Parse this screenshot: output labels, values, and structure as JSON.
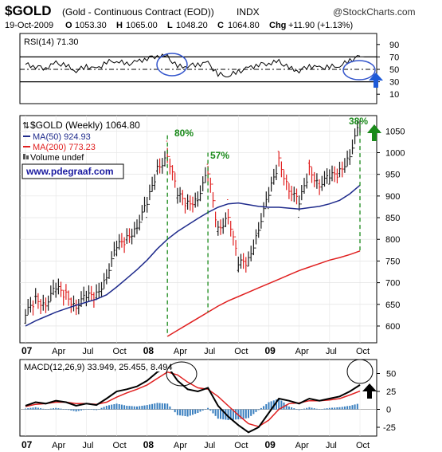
{
  "header": {
    "symbol": "$GOLD",
    "description": "(Gold - Continuous Contract (EOD))",
    "exchange": "INDX",
    "source": "@StockCharts.com",
    "date": "19-Oct-2009",
    "o_label": "O",
    "o_value": "1053.30",
    "h_label": "H",
    "h_value": "1065.00",
    "l_label": "L",
    "l_value": "1048.20",
    "c_label": "C",
    "c_value": "1064.80",
    "chg_label": "Chg",
    "chg_value": "+11.90 (+1.13%)"
  },
  "rsi_panel": {
    "label": "RSI(14) 71.30",
    "tick_labels": [
      "90",
      "70",
      "50",
      "30",
      "10"
    ]
  },
  "main_panel": {
    "legend_gold": "$GOLD (Weekly) 1064.80",
    "legend_ma50": "MA(50) 924.93",
    "legend_ma200": "MA(200) 773.23",
    "legend_volume": "Volume undef",
    "watermark": "www.pdegraaf.com",
    "y_tick_labels": [
      "1050",
      "1000",
      "950",
      "900",
      "850",
      "800",
      "750",
      "700",
      "650",
      "600"
    ],
    "x_tick_labels": [
      "07",
      "Apr",
      "Jul",
      "Oct",
      "08",
      "Apr",
      "Jul",
      "Oct",
      "09",
      "Apr",
      "Jul",
      "Oct"
    ],
    "annotations": [
      "80%",
      "57%",
      "38%"
    ]
  },
  "macd_panel": {
    "label": "MACD(12,26,9) 33.949, 25.455, 8.494",
    "tick_labels": [
      "50",
      "25",
      "0",
      "-25"
    ],
    "x_tick_labels": [
      "07",
      "Apr",
      "Jul",
      "Oct",
      "08",
      "Apr",
      "Jul",
      "Oct",
      "09",
      "Apr",
      "Jul",
      "Oct"
    ]
  },
  "colors": {
    "ma50": "#1f2b8c",
    "ma200": "#e02020",
    "up_bar": "#1a1a1a",
    "down_bar": "#e02020",
    "annotation_green": "#1a8a1a",
    "arrow_blue": "#1e5ad8",
    "ellipse_blue": "#3355cc",
    "histogram": "#3a7fbf",
    "watermark_text": "#1a1aa0"
  },
  "chart_data": [
    {
      "type": "line",
      "title": "RSI(14) 71.30",
      "x": [
        "Jan 07",
        "Feb 07",
        "Mar 07",
        "Apr 07",
        "May 07",
        "Jun 07",
        "Jul 07",
        "Aug 07",
        "Sep 07",
        "Oct 07",
        "Nov 07",
        "Dec 07",
        "Jan 08",
        "Feb 08",
        "Mar 08",
        "Apr 08",
        "May 08",
        "Jun 08",
        "Jul 08",
        "Aug 08",
        "Sep 08",
        "Oct 08",
        "Nov 08",
        "Dec 08",
        "Jan 09",
        "Feb 09",
        "Mar 09",
        "Apr 09",
        "May 09",
        "Jun 09",
        "Jul 09",
        "Aug 09",
        "Sep 09",
        "Oct 09"
      ],
      "values": [
        58,
        55,
        52,
        60,
        56,
        48,
        55,
        50,
        62,
        64,
        58,
        62,
        68,
        72,
        70,
        54,
        56,
        58,
        60,
        42,
        40,
        46,
        52,
        58,
        60,
        62,
        52,
        48,
        56,
        52,
        54,
        56,
        64,
        71.3
      ],
      "ylim": [
        0,
        100
      ],
      "y_ticks": [
        10,
        30,
        50,
        70,
        90
      ],
      "reference_lines": [
        30,
        50,
        70
      ]
    },
    {
      "type": "line",
      "title": "$GOLD (Weekly) 1064.80",
      "x": [
        "Jan 07",
        "Feb 07",
        "Mar 07",
        "Apr 07",
        "May 07",
        "Jun 07",
        "Jul 07",
        "Aug 07",
        "Sep 07",
        "Oct 07",
        "Nov 07",
        "Dec 07",
        "Jan 08",
        "Feb 08",
        "Mar 08",
        "Apr 08",
        "May 08",
        "Jun 08",
        "Jul 08",
        "Aug 08",
        "Sep 08",
        "Oct 08",
        "Nov 08",
        "Dec 08",
        "Jan 09",
        "Feb 09",
        "Mar 09",
        "Apr 09",
        "May 09",
        "Jun 09",
        "Jul 09",
        "Aug 09",
        "Sep 09",
        "Oct 09"
      ],
      "ylim": [
        565,
        1080
      ],
      "y_ticks": [
        600,
        650,
        700,
        750,
        800,
        850,
        900,
        950,
        1000,
        1050
      ],
      "series": [
        {
          "name": "$GOLD (Weekly)",
          "values": [
            625,
            660,
            655,
            685,
            670,
            650,
            665,
            670,
            720,
            780,
            800,
            835,
            880,
            960,
            1000,
            900,
            880,
            900,
            950,
            820,
            860,
            740,
            750,
            830,
            900,
            980,
            920,
            880,
            960,
            930,
            940,
            955,
            1000,
            1064.8
          ]
        },
        {
          "name": "MA(50)",
          "values": [
            600,
            612,
            622,
            632,
            640,
            648,
            655,
            662,
            672,
            690,
            710,
            730,
            752,
            778,
            800,
            818,
            833,
            848,
            862,
            874,
            882,
            884,
            880,
            876,
            874,
            874,
            872,
            870,
            873,
            876,
            882,
            890,
            905,
            924.93
          ]
        },
        {
          "name": "MA(200)",
          "values": [
            null,
            null,
            null,
            null,
            null,
            null,
            null,
            null,
            null,
            null,
            null,
            null,
            null,
            null,
            576,
            590,
            604,
            618,
            632,
            646,
            658,
            668,
            678,
            688,
            698,
            708,
            718,
            728,
            736,
            744,
            752,
            758,
            765,
            773.23
          ]
        }
      ],
      "annotations": [
        {
          "text": "80%",
          "x": "Mar 08"
        },
        {
          "text": "57%",
          "x": "Jul 08"
        },
        {
          "text": "38%",
          "x": "Oct 09"
        }
      ]
    },
    {
      "type": "line",
      "title": "MACD(12,26,9) 33.949, 25.455, 8.494",
      "x": [
        "Jan 07",
        "Feb 07",
        "Mar 07",
        "Apr 07",
        "May 07",
        "Jun 07",
        "Jul 07",
        "Aug 07",
        "Sep 07",
        "Oct 07",
        "Nov 07",
        "Dec 07",
        "Jan 08",
        "Feb 08",
        "Mar 08",
        "Apr 08",
        "May 08",
        "Jun 08",
        "Jul 08",
        "Aug 08",
        "Sep 08",
        "Oct 08",
        "Nov 08",
        "Dec 08",
        "Jan 09",
        "Feb 09",
        "Mar 09",
        "Apr 09",
        "May 09",
        "Jun 09",
        "Jul 09",
        "Aug 09",
        "Sep 09",
        "Oct 09"
      ],
      "ylim": [
        -35,
        65
      ],
      "y_ticks": [
        -25,
        0,
        25,
        50
      ],
      "series": [
        {
          "name": "MACD",
          "values": [
            5,
            10,
            8,
            12,
            10,
            5,
            8,
            6,
            15,
            25,
            28,
            32,
            40,
            52,
            60,
            40,
            28,
            25,
            30,
            5,
            -10,
            -22,
            -32,
            -25,
            -5,
            15,
            12,
            8,
            15,
            12,
            15,
            18,
            25,
            33.949
          ]
        },
        {
          "name": "Signal",
          "values": [
            4,
            7,
            8,
            10,
            10,
            8,
            8,
            7,
            10,
            17,
            23,
            28,
            34,
            43,
            52,
            48,
            38,
            30,
            28,
            18,
            5,
            -8,
            -20,
            -24,
            -15,
            0,
            8,
            9,
            12,
            12,
            13,
            15,
            20,
            25.455
          ]
        },
        {
          "name": "Histogram",
          "values": [
            1,
            3,
            0,
            2,
            0,
            -3,
            0,
            -1,
            5,
            8,
            5,
            4,
            6,
            9,
            8,
            -8,
            -10,
            -5,
            2,
            -13,
            -15,
            -14,
            -12,
            -1,
            10,
            15,
            4,
            -1,
            3,
            0,
            2,
            3,
            5,
            8.494
          ]
        }
      ]
    }
  ]
}
